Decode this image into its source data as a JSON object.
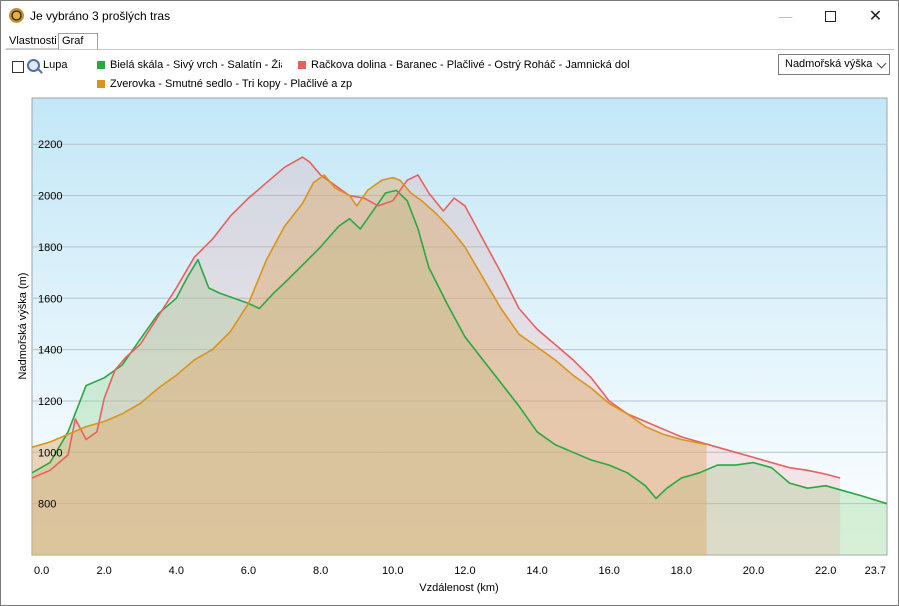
{
  "window": {
    "title": "Je vybráno 3 prošlých tras"
  },
  "tabs": [
    {
      "label": "Vlastnosti"
    },
    {
      "label": "Graf"
    }
  ],
  "toolbar": {
    "lupa_label": "Lupa",
    "lupa_checked": false,
    "select_value": "Nadmořská výška"
  },
  "legend": [
    {
      "name": "Bielá skála - Sivý vrch - Salatín - Žia",
      "color": "#29a844"
    },
    {
      "name": "Račkova dolina - Baranec - Plačlivé - Ostrý Roháč - Jamnická dol",
      "color": "#e8605e"
    },
    {
      "name": "Zverovka - Smutné sedlo - Tri kopy - Plačlivé a zp",
      "color": "#d9941c"
    }
  ],
  "chart_data": {
    "type": "area",
    "xlabel": "Vzdálenost  (km)",
    "ylabel": "Nadmořská výška (m)",
    "xlim": [
      0,
      23.7
    ],
    "ylim": [
      600,
      2380
    ],
    "x_ticks": [
      "0.0",
      "2.0",
      "4.0",
      "6.0",
      "8.0",
      "10.0",
      "12.0",
      "14.0",
      "16.0",
      "18.0",
      "20.0",
      "22.0",
      "23.7"
    ],
    "y_ticks": [
      800,
      1000,
      1200,
      1400,
      1600,
      1800,
      2000,
      2200
    ],
    "grid": true,
    "series": [
      {
        "name": "Bielá skála - Sivý vrch - Salatín - Žia",
        "color": "#29a844",
        "x": [
          0,
          0.5,
          1,
          1.5,
          2,
          2.5,
          3,
          3.5,
          4,
          4.3,
          4.6,
          4.9,
          5.2,
          5.6,
          6,
          6.3,
          6.7,
          7,
          7.5,
          8,
          8.5,
          8.8,
          9.1,
          9.5,
          9.8,
          10.1,
          10.4,
          10.7,
          11,
          11.5,
          12,
          12.5,
          13,
          13.5,
          14,
          14.5,
          15,
          15.5,
          16,
          16.5,
          17,
          17.3,
          17.6,
          18,
          18.5,
          19,
          19.5,
          20,
          20.5,
          21,
          21.5,
          22,
          22.5,
          23,
          23.7
        ],
        "y": [
          920,
          960,
          1080,
          1260,
          1290,
          1340,
          1440,
          1540,
          1600,
          1680,
          1750,
          1640,
          1620,
          1600,
          1580,
          1560,
          1620,
          1660,
          1730,
          1800,
          1880,
          1910,
          1870,
          1950,
          2010,
          2020,
          1980,
          1870,
          1720,
          1580,
          1450,
          1360,
          1270,
          1180,
          1080,
          1030,
          1000,
          970,
          950,
          920,
          870,
          820,
          860,
          900,
          920,
          950,
          950,
          960,
          940,
          880,
          860,
          870,
          850,
          830,
          800
        ]
      },
      {
        "name": "Račkova dolina - Baranec - Plačlivé - Ostrý Roháč - Jamnická dol",
        "color": "#e8605e",
        "x": [
          0,
          0.5,
          1,
          1.2,
          1.5,
          1.8,
          2,
          2.3,
          2.6,
          3,
          3.5,
          4,
          4.5,
          5,
          5.5,
          6,
          6.5,
          7,
          7.5,
          7.7,
          8,
          8.4,
          8.8,
          9.2,
          9.6,
          10,
          10.4,
          10.7,
          11,
          11.4,
          11.7,
          12,
          12.5,
          13,
          13.5,
          14,
          14.5,
          15,
          15.5,
          16,
          16.5,
          17,
          17.5,
          18,
          18.5,
          19,
          19.5,
          20,
          20.5,
          21,
          21.5,
          22,
          22.4
        ],
        "y": [
          900,
          930,
          990,
          1130,
          1050,
          1080,
          1210,
          1320,
          1370,
          1420,
          1530,
          1640,
          1760,
          1830,
          1920,
          1990,
          2050,
          2110,
          2150,
          2130,
          2080,
          2040,
          2000,
          1990,
          1960,
          1980,
          2060,
          2080,
          2010,
          1940,
          1990,
          1960,
          1830,
          1700,
          1560,
          1480,
          1420,
          1360,
          1290,
          1200,
          1150,
          1120,
          1090,
          1060,
          1040,
          1020,
          1000,
          980,
          960,
          940,
          930,
          915,
          900
        ]
      },
      {
        "name": "Zverovka - Smutné sedlo - Tri kopy - Plačlivé a zp",
        "color": "#d9941c",
        "x": [
          0,
          0.5,
          1,
          1.5,
          2,
          2.5,
          3,
          3.5,
          4,
          4.5,
          5,
          5.5,
          6,
          6.5,
          7,
          7.5,
          7.8,
          8.1,
          8.4,
          8.8,
          9,
          9.3,
          9.7,
          10,
          10.2,
          10.5,
          10.8,
          11.2,
          11.6,
          12,
          12.5,
          13,
          13.5,
          14,
          14.5,
          15,
          15.5,
          16,
          16.5,
          17,
          17.5,
          18,
          18.7
        ],
        "y": [
          1020,
          1040,
          1070,
          1100,
          1120,
          1150,
          1190,
          1250,
          1300,
          1360,
          1400,
          1470,
          1580,
          1750,
          1880,
          1970,
          2050,
          2080,
          2030,
          2000,
          1960,
          2020,
          2060,
          2070,
          2060,
          2010,
          1980,
          1930,
          1870,
          1800,
          1680,
          1560,
          1460,
          1410,
          1360,
          1300,
          1250,
          1190,
          1150,
          1100,
          1070,
          1050,
          1030
        ]
      }
    ]
  }
}
